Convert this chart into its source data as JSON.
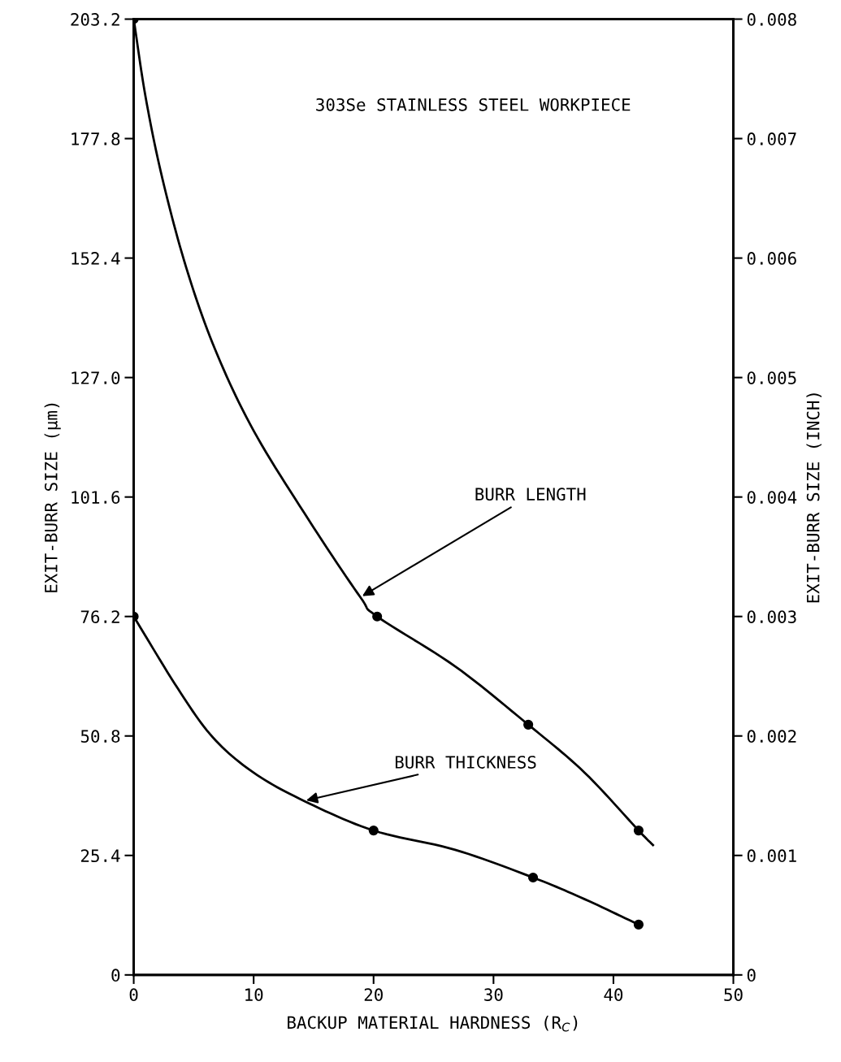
{
  "chart_data": {
    "type": "line",
    "title": "303Se STAINLESS STEEL WORKPIECE",
    "xlabel": "BACKUP MATERIAL HARDNESS (R$_{C}$)",
    "ylabel": "EXIT-BURR SIZE (μm)",
    "y2label": "EXIT-BURR SIZE (INCH)",
    "xlim": [
      0,
      50
    ],
    "xticks": [
      0,
      10,
      20,
      30,
      40,
      50
    ],
    "ylim": [
      0,
      203.2
    ],
    "yticks": [
      0,
      25.4,
      50.8,
      76.2,
      101.6,
      {
        "value": 127,
        "label": "127.0"
      },
      152.4,
      177.8,
      203.2
    ],
    "y2lim": [
      0,
      0.008
    ],
    "y2ticks": [
      0,
      0.001,
      0.002,
      0.003,
      0.004,
      0.005,
      0.006,
      0.007,
      0.008
    ],
    "grid": false,
    "series": [
      {
        "type": "line",
        "marker": "none",
        "color": "#000000",
        "x": [
          0,
          1.0,
          2.4,
          4.4,
          6.8,
          10.0,
          14.6,
          18.9,
          20.3,
          26.8,
          32.9,
          37.6,
          42.1,
          43.3
        ],
        "values": [
          203.2,
          186.5,
          169.2,
          150.2,
          132.9,
          115.7,
          96.7,
          80.3,
          76.2,
          65.6,
          53.2,
          43.0,
          30.7,
          27.6
        ]
      },
      {
        "type": "scatter",
        "marker": "circle",
        "color": "#000000",
        "x": [
          0,
          20.3,
          32.9,
          42.1
        ],
        "values": [
          203.2,
          76.2,
          53.2,
          30.7
        ]
      },
      {
        "type": "line",
        "marker": "none",
        "color": "#000000",
        "x": [
          0,
          3.7,
          6.6,
          10.0,
          14.2,
          20.0,
          26.8,
          33.3,
          37.6,
          42.1
        ],
        "values": [
          76.2,
          60.8,
          50.5,
          43.0,
          37.0,
          30.7,
          26.6,
          20.7,
          16.1,
          10.7
        ]
      },
      {
        "type": "scatter",
        "marker": "circle",
        "color": "#000000",
        "x": [
          0,
          20.0,
          33.3,
          42.1
        ],
        "values": [
          76.2,
          30.7,
          20.7,
          10.7
        ]
      }
    ],
    "annotations": [
      {
        "text": "BURR LENGTH",
        "x": 18.9,
        "y": 80.3
      },
      {
        "text": "BURR THICKNESS",
        "x": 14.2,
        "y": 37.0
      }
    ]
  }
}
